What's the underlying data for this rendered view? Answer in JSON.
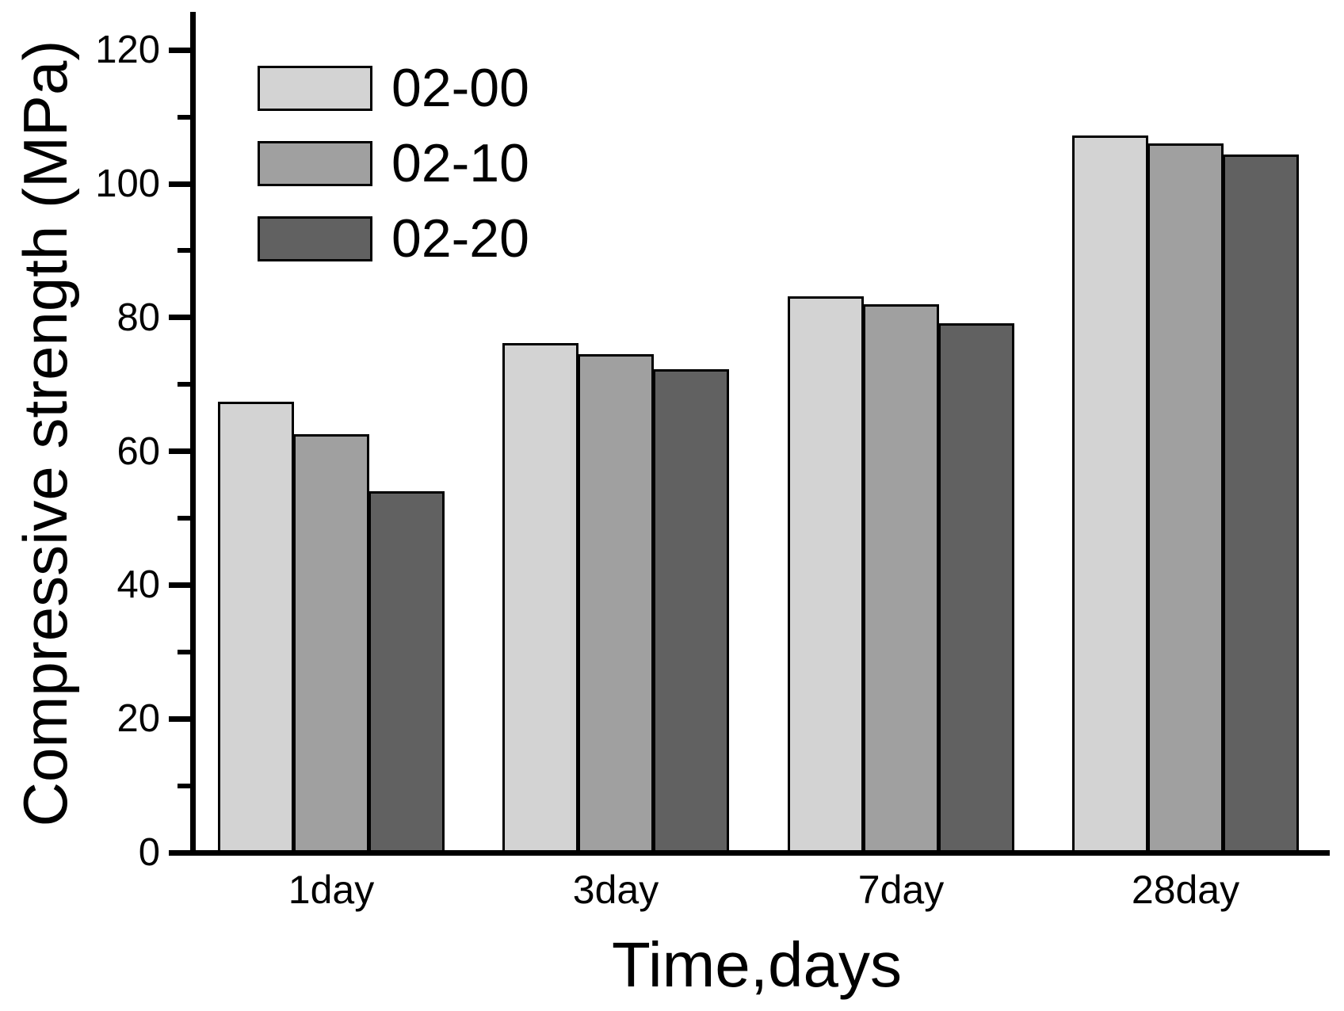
{
  "chart_data": {
    "type": "bar",
    "title": "",
    "xlabel": "Time,days",
    "ylabel": "Compressive strength (MPa)",
    "categories": [
      "1day",
      "3day",
      "7day",
      "28day"
    ],
    "series": [
      {
        "name": "02-00",
        "color": "#d3d3d3",
        "values": [
          67.4,
          76.2,
          83.2,
          107.2
        ]
      },
      {
        "name": "02-10",
        "color": "#a0a0a0",
        "values": [
          62.6,
          74.5,
          82.0,
          106.1
        ]
      },
      {
        "name": "02-20",
        "color": "#616161",
        "values": [
          54.0,
          72.3,
          79.2,
          104.4
        ]
      }
    ],
    "ylim": [
      0,
      125
    ],
    "yticks_major": [
      0,
      20,
      40,
      60,
      80,
      100,
      120
    ],
    "yticks_minor": [
      10,
      30,
      50,
      70,
      90,
      110
    ],
    "grid": false,
    "legend_position": "upper-left-inside",
    "bar_outline_color": "#000000",
    "axis_color": "#000000",
    "background": "#ffffff"
  }
}
